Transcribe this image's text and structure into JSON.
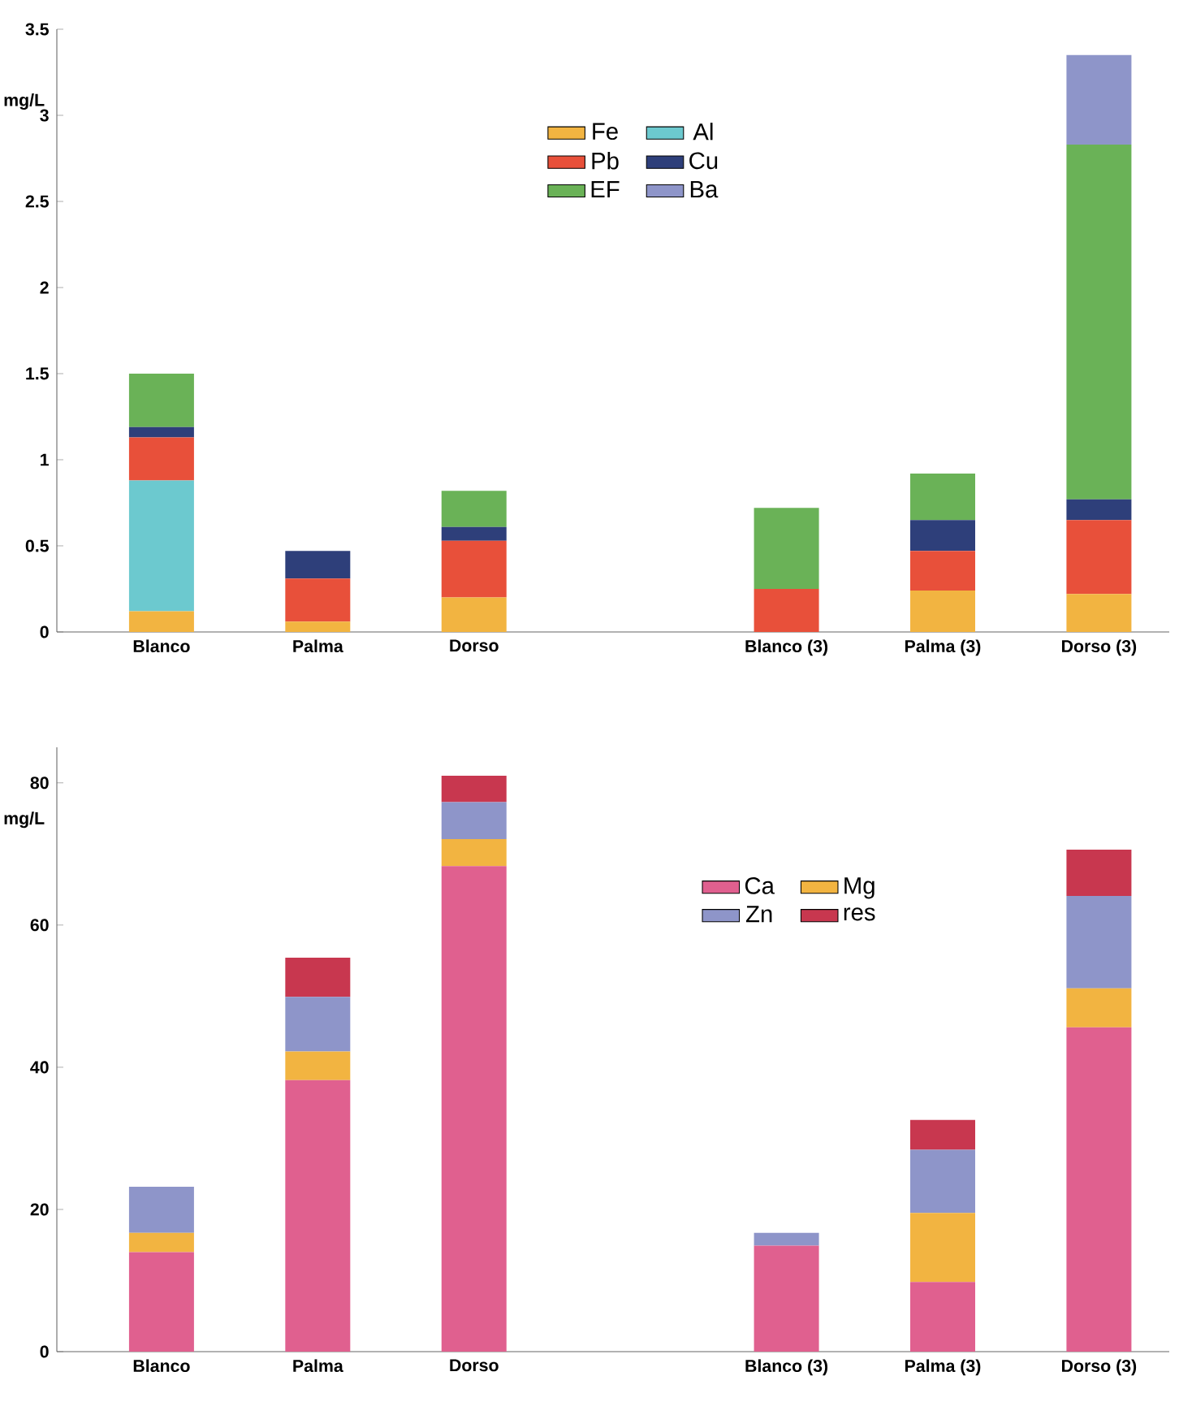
{
  "chart_data": [
    {
      "type": "bar",
      "stacked": true,
      "ylabel": "mg/L",
      "categories": [
        "Blanco",
        "Palma",
        "Dorso",
        null,
        "Blanco (3)",
        "Palma (3)",
        "Dorso (3)"
      ],
      "ylim": [
        0,
        3.5
      ],
      "yticks": [
        0,
        0.5,
        1,
        1.5,
        2,
        2.5,
        3,
        3.5
      ],
      "legend": "top",
      "series": [
        {
          "name": "Fe",
          "color": "#f2b441",
          "values": [
            0.12,
            0.06,
            0.2,
            null,
            0,
            0.24,
            0.22
          ]
        },
        {
          "name": "Al",
          "color": "#6cc9cf",
          "values": [
            0.76,
            0,
            0,
            null,
            0,
            0,
            0
          ]
        },
        {
          "name": "Pb",
          "color": "#e8503a",
          "values": [
            0.25,
            0.25,
            0.33,
            null,
            0.25,
            0.23,
            0.43
          ]
        },
        {
          "name": "Cu",
          "color": "#2e3f7a",
          "values": [
            0.06,
            0.16,
            0.08,
            null,
            0,
            0.18,
            0.12
          ]
        },
        {
          "name": "EF",
          "color": "#6ab257",
          "values": [
            0.31,
            0,
            0.21,
            null,
            0.47,
            0.27,
            2.06
          ]
        },
        {
          "name": "Ba",
          "color": "#8e95c9",
          "values": [
            0,
            0,
            0,
            null,
            0,
            0,
            0.52
          ]
        }
      ]
    },
    {
      "type": "bar",
      "stacked": true,
      "ylabel": "mg/L",
      "categories": [
        "Blanco",
        "Palma",
        "Dorso",
        null,
        "Blanco (3)",
        "Palma (3)",
        "Dorso (3)"
      ],
      "ylim": [
        0,
        85
      ],
      "yticks": [
        0,
        20,
        40,
        60,
        80
      ],
      "legend": "top right",
      "series": [
        {
          "name": "Ca",
          "color": "#e0608f",
          "values": [
            14.0,
            38.2,
            68.3,
            null,
            14.9,
            9.8,
            45.6
          ]
        },
        {
          "name": "Mg",
          "color": "#f2b441",
          "values": [
            2.7,
            4.0,
            3.8,
            null,
            0,
            9.7,
            5.5
          ]
        },
        {
          "name": "Zn",
          "color": "#8e95c9",
          "values": [
            6.5,
            7.7,
            5.2,
            null,
            1.8,
            8.9,
            13.0
          ]
        },
        {
          "name": "res",
          "color": "#c8374f",
          "values": [
            0,
            5.5,
            3.7,
            null,
            0,
            4.2,
            6.5
          ]
        }
      ]
    }
  ]
}
